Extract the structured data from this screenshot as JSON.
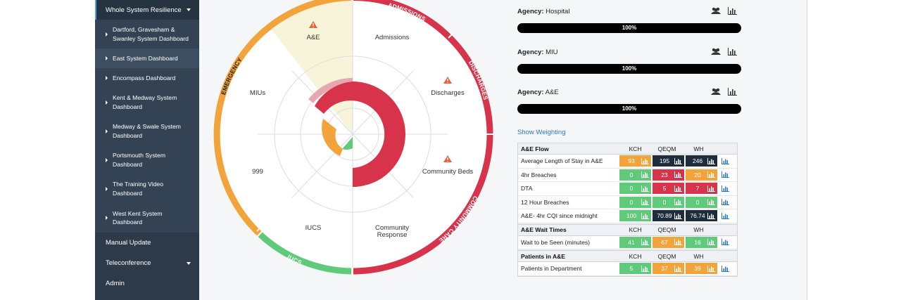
{
  "sidebar": {
    "active_item": "Whole System Resilience",
    "sub_items": [
      {
        "l1": "Dartford, Gravesham &",
        "l2": "Swanley System Dashboard"
      },
      {
        "l1": "East System Dashboard",
        "l2": ""
      },
      {
        "l1": "Encompass Dashboard",
        "l2": ""
      },
      {
        "l1": "Kent & Medway System",
        "l2": "Dashboard"
      },
      {
        "l1": "Medway & Swale System",
        "l2": "Dashboard"
      },
      {
        "l1": "Portsmouth System",
        "l2": "Dashboard"
      },
      {
        "l1": "The Training Video",
        "l2": "Dashboard"
      },
      {
        "l1": "West Kent System",
        "l2": "Dashboard"
      }
    ],
    "manual_update": "Manual Update",
    "teleconference": "Teleconference",
    "admin": "Admin"
  },
  "radar": {
    "ring_labels": [
      "ADMISSIONS",
      "DISCHARGES",
      "COMMUNITY CARE",
      "IUCS",
      "EMERGENCY"
    ],
    "segment_labels": {
      "ae": "A&E",
      "admissions": "Admissions",
      "discharges": "Discharges",
      "community_beds": "Community Beds",
      "community_response_1": "Community",
      "community_response_2": "Response",
      "iucs": "IUCS",
      "n999": "999",
      "mius": "MIUs"
    },
    "colors": {
      "red": "#d7344b",
      "orange": "#f2a33a",
      "green": "#5fcb7a",
      "pale": "#f7f4d9",
      "pink": "#e8a6ae",
      "warn": "#e8623a"
    }
  },
  "agencies": [
    {
      "prefix": "Agency:",
      "name": "Hospital",
      "percent": "100%"
    },
    {
      "prefix": "Agency:",
      "name": "MIU",
      "percent": "100%"
    },
    {
      "prefix": "Agency:",
      "name": "A&E",
      "percent": "100%"
    }
  ],
  "show_weighting": "Show Weighting",
  "tables": {
    "cols": [
      "KCH",
      "QEQM",
      "WH"
    ],
    "ae_flow": {
      "title": "A&E Flow",
      "rows": [
        {
          "metric": "Average Length of Stay in A&E",
          "values": [
            "93",
            "195",
            "246"
          ],
          "colors": [
            "orange",
            "navy",
            "navy"
          ]
        },
        {
          "metric": "4hr Breaches",
          "values": [
            "0",
            "23",
            "20"
          ],
          "colors": [
            "green",
            "red",
            "orange"
          ]
        },
        {
          "metric": "DTA",
          "values": [
            "0",
            "5",
            "7"
          ],
          "colors": [
            "green",
            "red",
            "red"
          ]
        },
        {
          "metric": "12 Hour Breaches",
          "values": [
            "0",
            "0",
            "0"
          ],
          "colors": [
            "green",
            "green",
            "green"
          ]
        },
        {
          "metric": "A&E- 4hr CQI since midnight",
          "values": [
            "100",
            "70.89",
            "76.74"
          ],
          "colors": [
            "green",
            "navy",
            "navy"
          ]
        }
      ]
    },
    "wait_times": {
      "title": "A&E Wait Times",
      "rows": [
        {
          "metric": "Wait to be Seen (minutes)",
          "values": [
            "41",
            "67",
            "16"
          ],
          "colors": [
            "green",
            "orange",
            "green"
          ]
        }
      ]
    },
    "patients": {
      "title": "Patients in A&E",
      "rows": [
        {
          "metric": "Patients in Department",
          "values": [
            "5",
            "37",
            "39"
          ],
          "colors": [
            "green",
            "orange",
            "orange"
          ]
        }
      ]
    },
    "palette": {
      "green": "#5fcb7a",
      "red": "#d7344b",
      "orange": "#f2a33a",
      "navy": "#1e2d3d"
    }
  }
}
